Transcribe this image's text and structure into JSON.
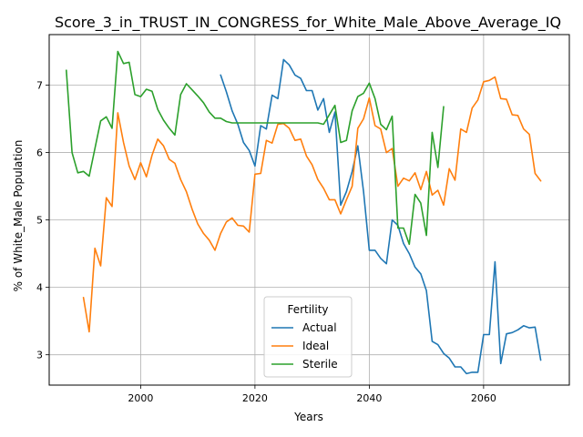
{
  "chart_data": {
    "type": "line",
    "title": "Score_3_in_TRUST_IN_CONGRESS_for_White_Male_Above_Average_IQ",
    "xlabel": "Years",
    "ylabel": "% of White_Male Population",
    "xlim": [
      1984,
      2075
    ],
    "ylim": [
      2.55,
      7.75
    ],
    "xticks": [
      2000,
      2020,
      2040,
      2060
    ],
    "yticks": [
      3,
      4,
      5,
      6,
      7
    ],
    "grid": true,
    "legend": {
      "title": "Fertility",
      "position": "lower-center"
    },
    "series": [
      {
        "name": "Actual",
        "color": "#1f77b4",
        "x": [
          2014,
          2015,
          2016,
          2017,
          2018,
          2019,
          2020,
          2021,
          2022,
          2023,
          2024,
          2025,
          2026,
          2027,
          2028,
          2029,
          2030,
          2031,
          2032,
          2033,
          2034,
          2035,
          2036,
          2037,
          2038,
          2039,
          2040,
          2041,
          2042,
          2043,
          2044,
          2045,
          2046,
          2047,
          2048,
          2049,
          2050,
          2051,
          2052,
          2053,
          2054,
          2055,
          2056,
          2057,
          2058,
          2059,
          2060,
          2061,
          2062,
          2063,
          2064,
          2065,
          2066,
          2067,
          2068,
          2069,
          2070
        ],
        "y": [
          7.15,
          6.9,
          6.62,
          6.42,
          6.15,
          6.03,
          5.8,
          6.4,
          6.35,
          6.85,
          6.8,
          7.38,
          7.3,
          7.15,
          7.1,
          6.92,
          6.92,
          6.63,
          6.8,
          6.3,
          6.6,
          5.22,
          5.42,
          5.72,
          6.1,
          5.42,
          4.55,
          4.55,
          4.43,
          4.35,
          5.0,
          4.92,
          4.65,
          4.5,
          4.3,
          4.2,
          3.95,
          3.2,
          3.15,
          3.02,
          2.95,
          2.82,
          2.82,
          2.72,
          2.74,
          2.74,
          3.3,
          3.3,
          4.38,
          2.87,
          3.31,
          3.33,
          3.37,
          3.43,
          3.4,
          3.41,
          2.92
        ]
      },
      {
        "name": "Ideal",
        "color": "#ff7f0e",
        "x": [
          1990,
          1991,
          1992,
          1993,
          1994,
          1995,
          1996,
          1997,
          1998,
          1999,
          2000,
          2001,
          2002,
          2003,
          2004,
          2005,
          2006,
          2007,
          2008,
          2009,
          2010,
          2011,
          2012,
          2013,
          2014,
          2015,
          2016,
          2017,
          2018,
          2019,
          2020,
          2021,
          2022,
          2023,
          2024,
          2025,
          2026,
          2027,
          2028,
          2029,
          2030,
          2031,
          2032,
          2033,
          2034,
          2035,
          2036,
          2037,
          2038,
          2039,
          2040,
          2041,
          2042,
          2043,
          2044,
          2045,
          2046,
          2047,
          2048,
          2049,
          2050,
          2051,
          2052,
          2053,
          2054,
          2055,
          2056,
          2057,
          2058,
          2059,
          2060,
          2061,
          2062,
          2063,
          2064,
          2065,
          2066,
          2067,
          2068,
          2069,
          2070
        ],
        "y": [
          3.85,
          3.34,
          4.58,
          4.32,
          5.33,
          5.2,
          6.59,
          6.15,
          5.8,
          5.6,
          5.85,
          5.64,
          5.96,
          6.2,
          6.1,
          5.9,
          5.84,
          5.6,
          5.42,
          5.16,
          4.94,
          4.8,
          4.7,
          4.55,
          4.8,
          4.97,
          5.03,
          4.92,
          4.91,
          4.82,
          5.68,
          5.69,
          6.18,
          6.14,
          6.42,
          6.43,
          6.36,
          6.18,
          6.2,
          5.95,
          5.82,
          5.6,
          5.47,
          5.3,
          5.3,
          5.09,
          5.3,
          5.5,
          6.36,
          6.5,
          6.81,
          6.4,
          6.35,
          6.0,
          6.06,
          5.5,
          5.62,
          5.58,
          5.7,
          5.45,
          5.72,
          5.37,
          5.44,
          5.22,
          5.76,
          5.59,
          6.35,
          6.3,
          6.66,
          6.78,
          7.05,
          7.07,
          7.12,
          6.8,
          6.79,
          6.56,
          6.55,
          6.35,
          6.27,
          5.69,
          5.58
        ]
      },
      {
        "name": "Sterile",
        "color": "#2ca02c",
        "x": [
          1987,
          1988,
          1989,
          1990,
          1991,
          1992,
          1993,
          1994,
          1995,
          1996,
          1997,
          1998,
          1999,
          2000,
          2001,
          2002,
          2003,
          2004,
          2005,
          2006,
          2007,
          2008,
          2009,
          2010,
          2011,
          2012,
          2013,
          2014,
          2015,
          2016,
          2017,
          2018,
          2019,
          2020,
          2021,
          2022,
          2023,
          2024,
          2025,
          2026,
          2027,
          2028,
          2029,
          2030,
          2031,
          2032,
          2033,
          2034,
          2035,
          2036,
          2037,
          2038,
          2039,
          2040,
          2041,
          2042,
          2043,
          2044,
          2045,
          2046,
          2047,
          2048,
          2049,
          2050,
          2051,
          2052,
          2053
        ],
        "y": [
          7.22,
          6.0,
          5.7,
          5.72,
          5.65,
          6.06,
          6.47,
          6.53,
          6.36,
          7.5,
          7.32,
          7.34,
          6.86,
          6.83,
          6.94,
          6.91,
          6.64,
          6.48,
          6.36,
          6.26,
          6.86,
          7.02,
          6.93,
          6.84,
          6.74,
          6.6,
          6.51,
          6.51,
          6.46,
          6.44,
          6.44,
          6.44,
          6.44,
          6.44,
          6.44,
          6.44,
          6.44,
          6.44,
          6.44,
          6.44,
          6.44,
          6.44,
          6.44,
          6.44,
          6.44,
          6.42,
          6.56,
          6.7,
          6.15,
          6.18,
          6.62,
          6.83,
          6.88,
          7.03,
          6.8,
          6.42,
          6.34,
          6.54,
          4.88,
          4.88,
          4.64,
          5.38,
          5.25,
          4.77,
          6.3,
          5.78,
          6.68
        ]
      }
    ]
  }
}
